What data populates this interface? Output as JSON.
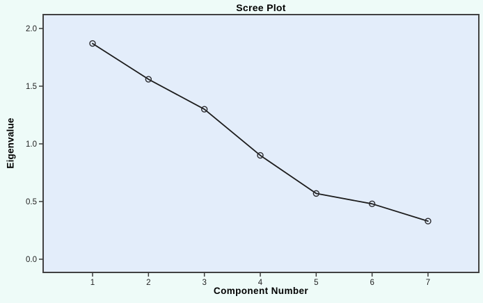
{
  "chart": {
    "title": "Scree Plot",
    "xlabel": "Component Number",
    "ylabel": "Eigenvalue"
  },
  "chart_data": {
    "type": "line",
    "title": "Scree Plot",
    "xlabel": "Component Number",
    "ylabel": "Eigenvalue",
    "categories": [
      "1",
      "2",
      "3",
      "4",
      "5",
      "6",
      "7"
    ],
    "series": [
      {
        "name": "Eigenvalue",
        "values": [
          1.87,
          1.56,
          1.3,
          0.9,
          0.57,
          0.48,
          0.33
        ]
      }
    ],
    "ylim": [
      0.0,
      2.0
    ],
    "y_ticks": [
      0.0,
      0.5,
      1.0,
      1.5,
      2.0
    ],
    "y_tick_labels": [
      "0.0",
      "0.5",
      "1.0",
      "1.5",
      "2.0"
    ],
    "grid": false,
    "legend": "none",
    "marker": "open-circle"
  },
  "colors": {
    "outer_bg": "#eefbf8",
    "panel_bg": "#e3edfa",
    "panel_border": "#414141",
    "line": "#1c1c1c",
    "marker_stroke": "#2a2a2e",
    "tick": "#3a3a3a",
    "text": "#000000"
  }
}
